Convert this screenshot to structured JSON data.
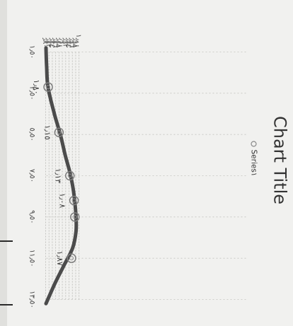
{
  "chart_data": {
    "type": "scatter",
    "title": "Chart Title",
    "legend": "Series١",
    "legend_position": "top",
    "grid": true,
    "xlim": [
      1.5,
      13.5
    ],
    "ylim": [
      0.8,
      2.0
    ],
    "x_ticks": [
      1.5,
      3.5,
      5.5,
      7.5,
      9.5,
      11.5,
      13.5
    ],
    "x_tick_labels": [
      "١٫٥٠",
      "٣٫٥٠",
      "٥٫٥٠",
      "٧٫٥٠",
      "٩٫٥٠",
      "١١٫٥٠",
      "١٣٫٥٠"
    ],
    "y_ticks": [
      0.8,
      0.82,
      0.84,
      0.86,
      0.88,
      0.9,
      0.92,
      0.94,
      0.96,
      0.98,
      1.0
    ],
    "y_tick_labels": [
      "٫٨٠",
      "٫٨٢",
      "٫٨٤",
      "٫٨٦",
      "٫٨٨",
      "٫٩٠",
      "٫٩٢",
      "٫٩٤",
      "٫٩٦",
      "٫٩٨",
      "١٫٠٠"
    ],
    "series": [
      {
        "name": "Series١",
        "x": [
          3.2,
          5.4,
          7.5,
          8.7,
          9.5,
          11.5
        ],
        "y": [
          0.815,
          0.88,
          0.945,
          0.97,
          0.975,
          0.955
        ],
        "data_labels": [
          "١٫٨٠",
          "١٫١٥",
          "١٫١٣",
          "١٫٠٨",
          "",
          "١٫٨٧"
        ]
      }
    ],
    "trendline": {
      "x": [
        1.3,
        2.2,
        3.2,
        4.5,
        5.5,
        6.5,
        7.3,
        8.1,
        8.8,
        9.5,
        10.2,
        11.0,
        11.8,
        12.7,
        13.7
      ],
      "y": [
        0.802,
        0.806,
        0.814,
        0.852,
        0.888,
        0.917,
        0.944,
        0.964,
        0.975,
        0.982,
        0.982,
        0.962,
        0.913,
        0.857,
        0.802
      ]
    }
  }
}
